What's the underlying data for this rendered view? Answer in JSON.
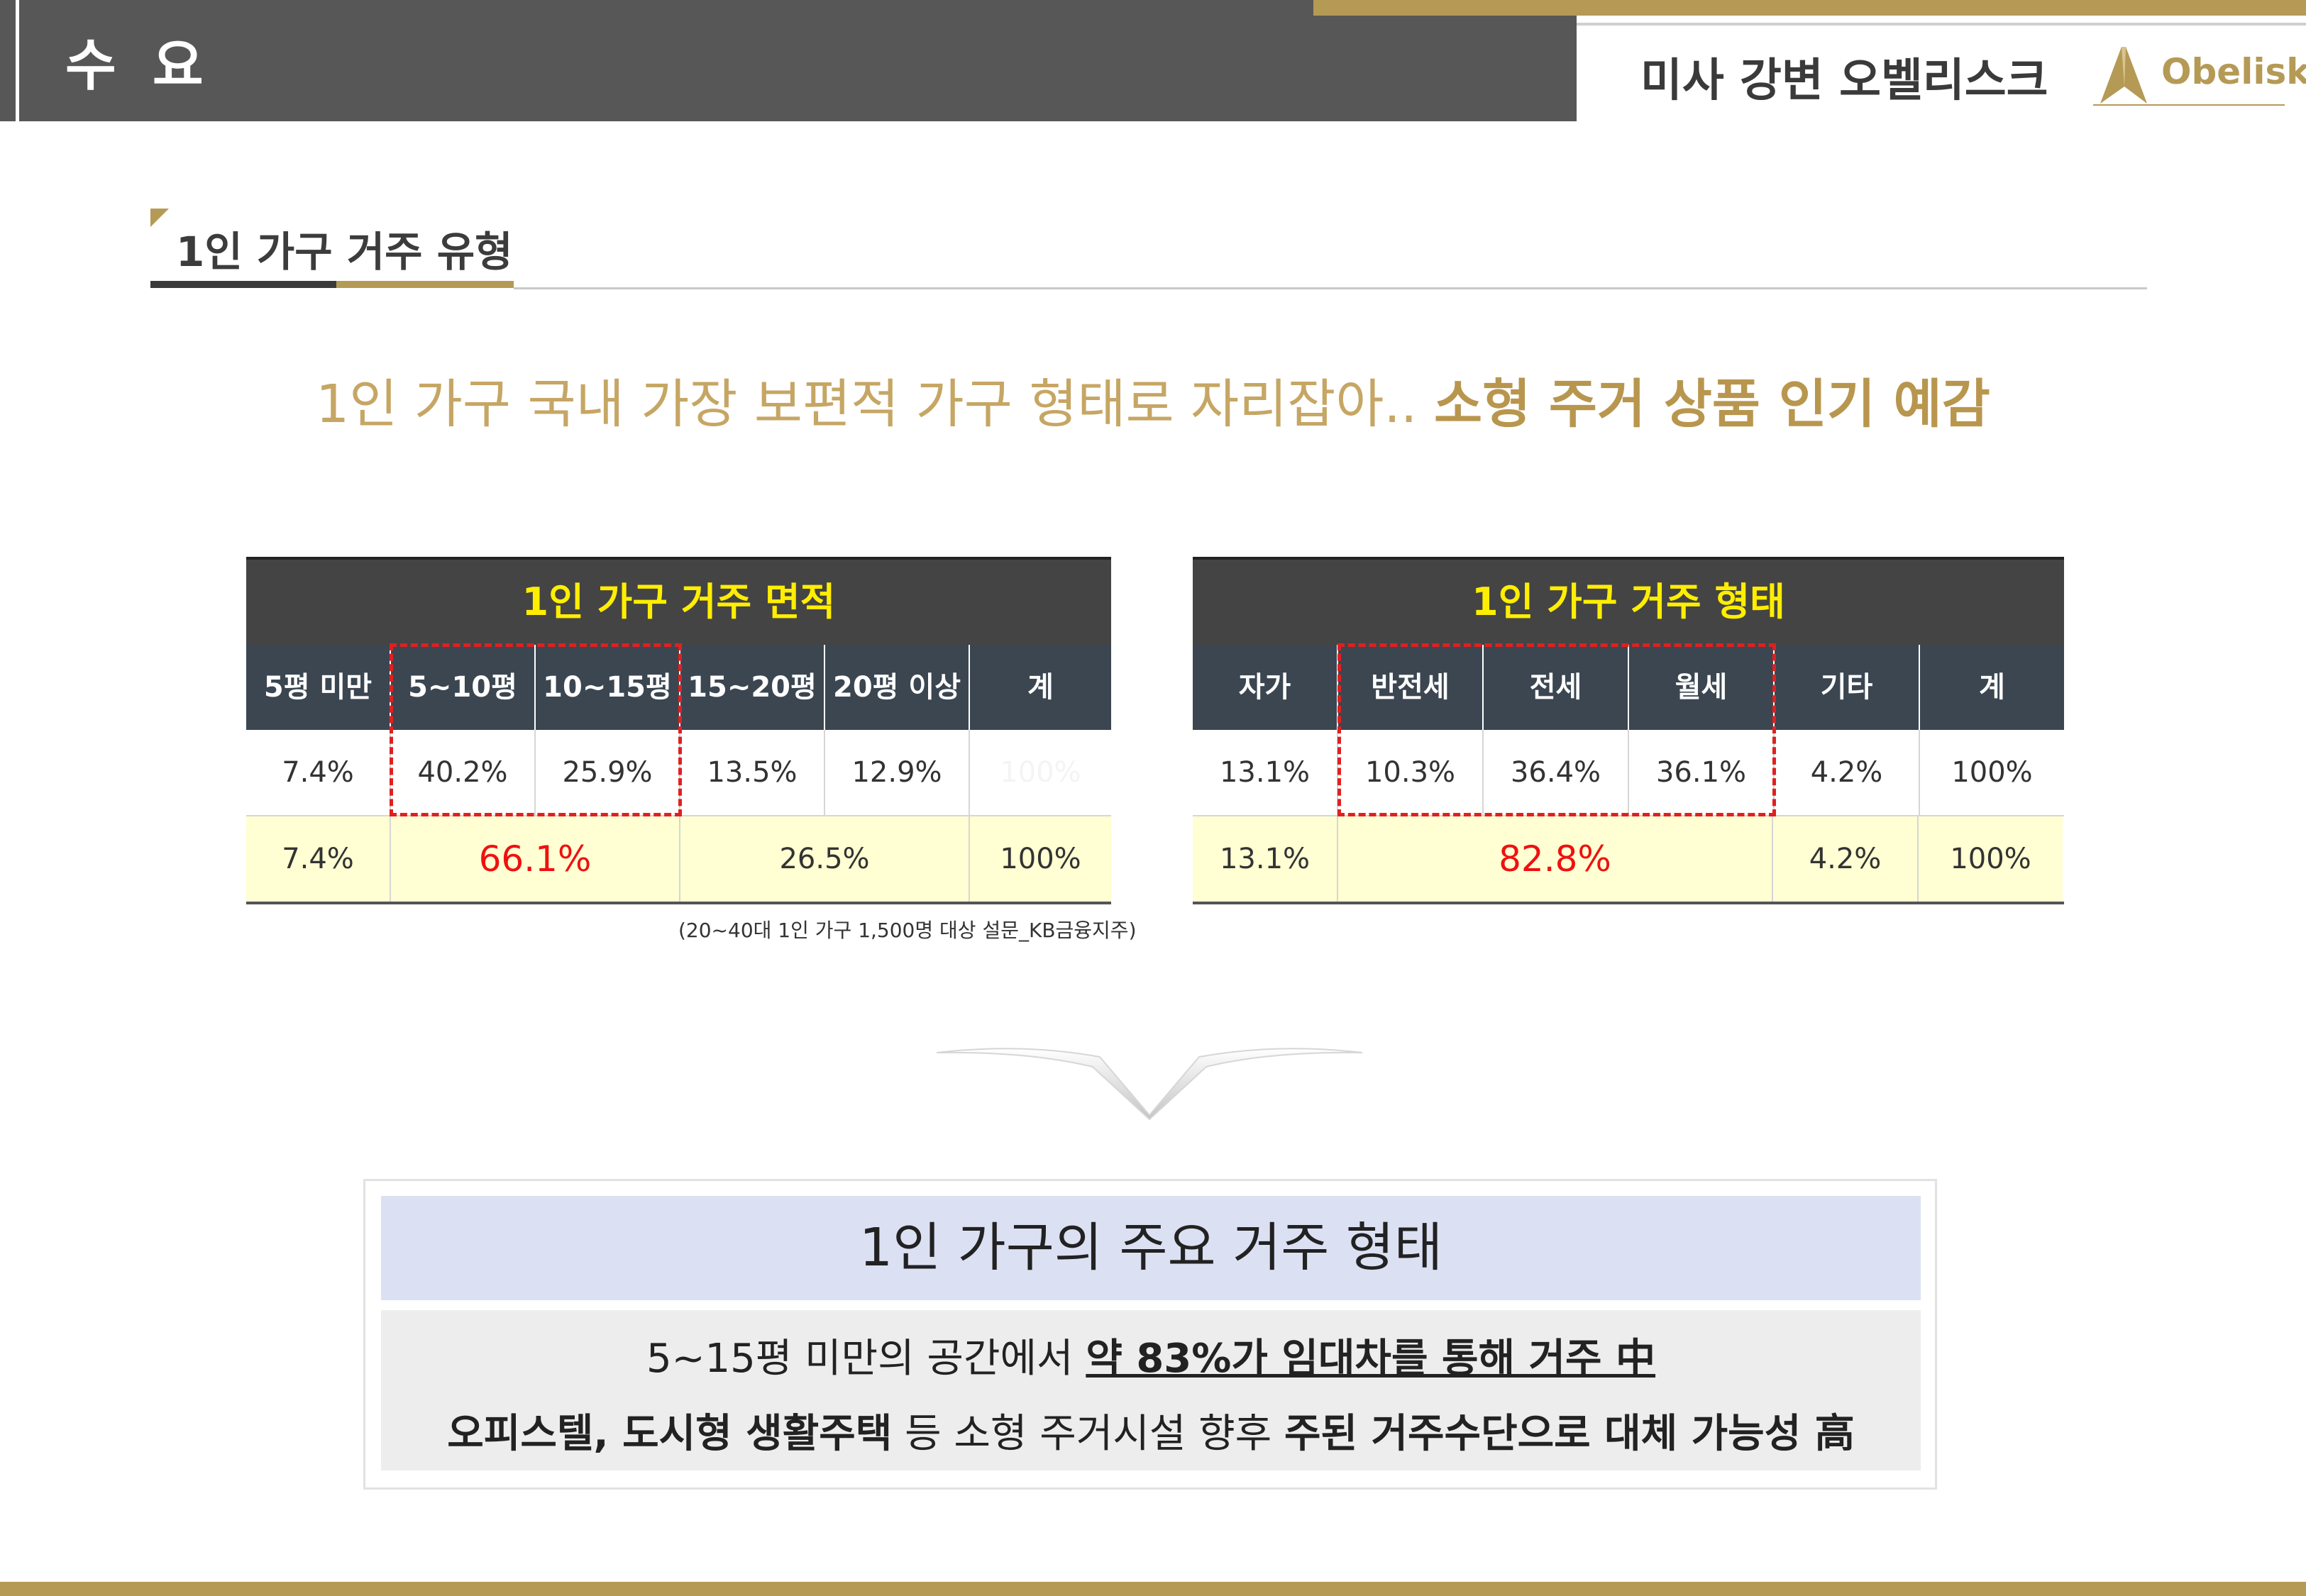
{
  "header": {
    "section": "수 요",
    "project": "미사 강변 오벨리스크",
    "logo_text": "Obelisk"
  },
  "section_title": "1인 가구 거주 유형",
  "headline": {
    "normal": "1인 가구 국내 가장 보편적 가구 형태로 자리잡아.. ",
    "bold": "소형 주거 상품 인기 예감"
  },
  "area_table": {
    "title": "1인 가구 거주 면적",
    "headers": [
      "5평 미만",
      "5~10평",
      "10~15평",
      "15~20평",
      "20평 이상",
      "계"
    ],
    "values": [
      "7.4%",
      "40.2%",
      "25.9%",
      "13.5%",
      "12.9%",
      "100%"
    ],
    "sums": [
      "7.4%",
      "66.1%",
      "26.5%",
      "100%"
    ]
  },
  "type_table": {
    "title": "1인 가구 거주 형태",
    "headers": [
      "자가",
      "반전세",
      "전세",
      "월세",
      "기타",
      "계"
    ],
    "values": [
      "13.1%",
      "10.3%",
      "36.4%",
      "36.1%",
      "4.2%",
      "100%"
    ],
    "sums": [
      "13.1%",
      "82.8%",
      "4.2%",
      "100%"
    ]
  },
  "source": "(20~40대 1인 가구 1,500명 대상 설문_KB금융지주)",
  "summary": {
    "title": "1인 가구의 주요 거주 형태",
    "line1_plain": "5~15평 미만의 공간에서 ",
    "line1_underline": "약 83%가 임대차를 통해 거주 中",
    "line2_bold1": "오피스텔, 도시형 생활주택",
    "line2_plain": " 등 소형 주거시설 향후 ",
    "line2_bold2": "주된 거주수단으로 대체 가능성 高"
  },
  "colors": {
    "gold": "#b59a56",
    "header_dark": "#575757",
    "table_title_text": "#ffee00",
    "table_header_bg": "#3b4651",
    "highlight_row": "#ffffd3",
    "emphasis_red": "#ee1111",
    "summary_head_bg": "#dbe0f3"
  }
}
